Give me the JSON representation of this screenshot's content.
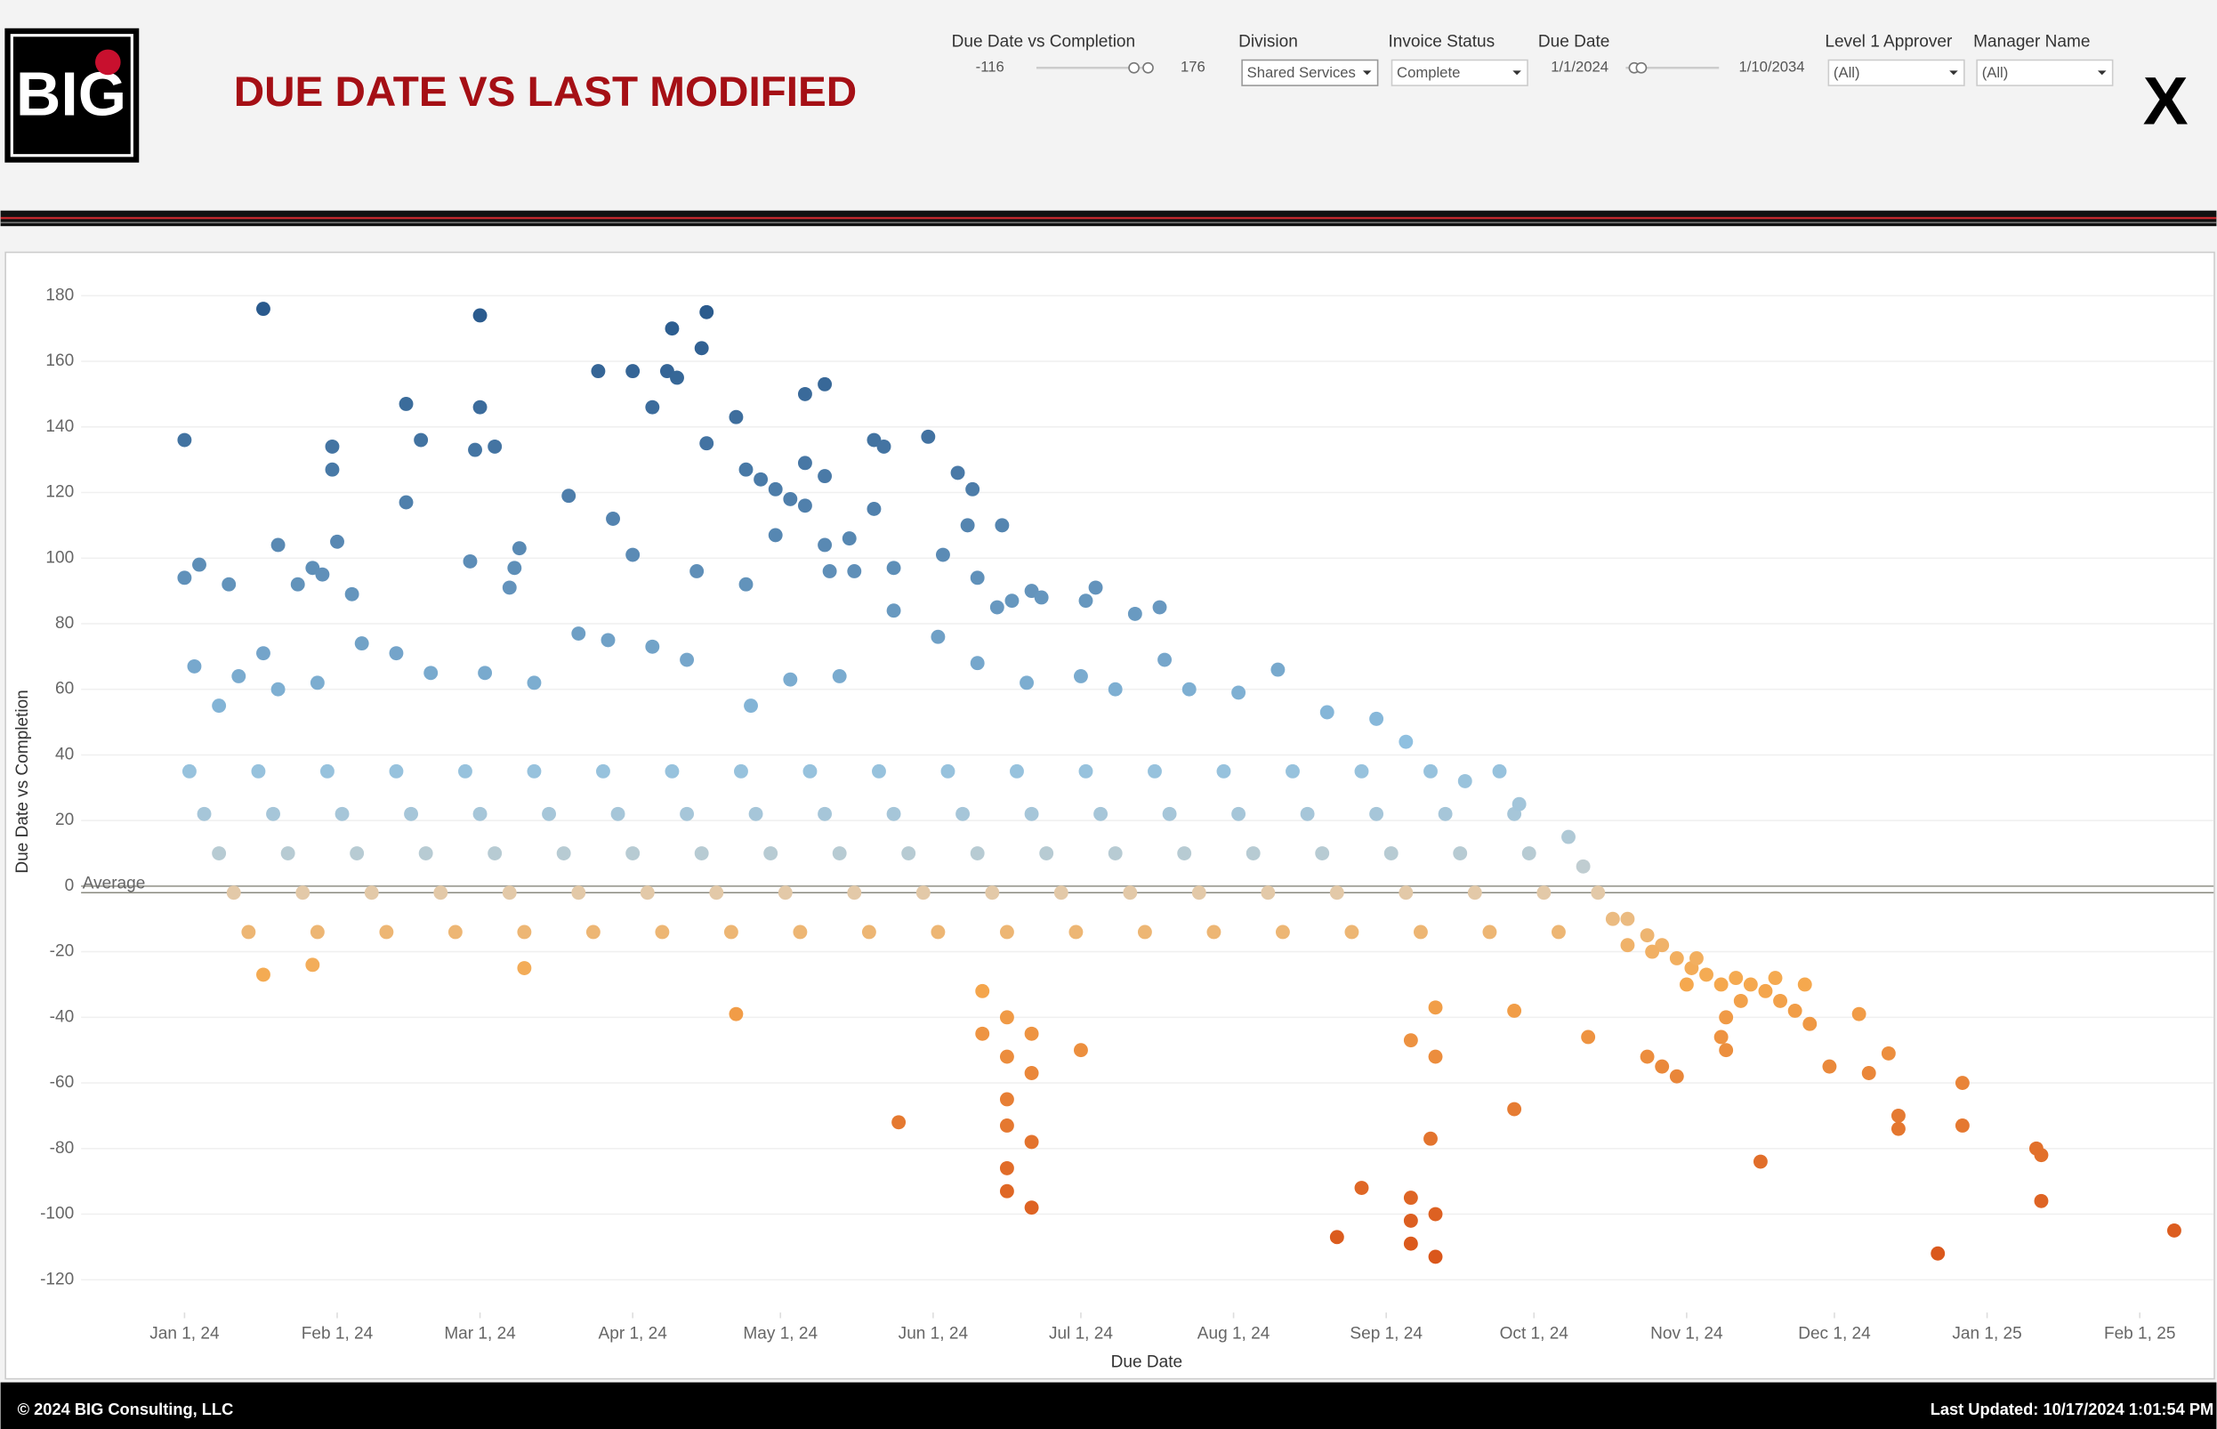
{
  "header": {
    "logo": "BIG",
    "title": "DUE DATE VS LAST MODIFIED",
    "close": "X"
  },
  "filters": [
    {
      "label": "Due Date vs Completion",
      "min": -116,
      "max": 176
    },
    {
      "label": "Division",
      "value": "Shared Services"
    },
    {
      "label": "Invoice Status",
      "value": "Complete"
    },
    {
      "label": "Due Date",
      "start": "1/1/2024",
      "end": "1/10/2034"
    },
    {
      "label": "Level 1 Approver",
      "value": "(All)"
    },
    {
      "label": "Manager Name",
      "value": "(All)"
    }
  ],
  "chart_data": {
    "type": "scatter",
    "x_label": "Due Date",
    "y_label": "Due Date vs Completion",
    "xlim": [
      "2023-12-11",
      "2025-02-16"
    ],
    "xticks": [
      {
        "value": "2024-01-01",
        "label": "Jan 1, 24"
      },
      {
        "value": "2024-02-01",
        "label": "Feb 1, 24"
      },
      {
        "value": "2024-03-01",
        "label": "Mar 1, 24"
      },
      {
        "value": "2024-04-01",
        "label": "Apr 1, 24"
      },
      {
        "value": "2024-05-01",
        "label": "May 1, 24"
      },
      {
        "value": "2024-06-01",
        "label": "Jun 1, 24"
      },
      {
        "value": "2024-07-01",
        "label": "Jul 1, 24"
      },
      {
        "value": "2024-08-01",
        "label": "Aug 1, 24"
      },
      {
        "value": "2024-09-01",
        "label": "Sep 1, 24"
      },
      {
        "value": "2024-10-01",
        "label": "Oct 1, 24"
      },
      {
        "value": "2024-11-01",
        "label": "Nov 1, 24"
      },
      {
        "value": "2024-12-01",
        "label": "Dec 1, 24"
      },
      {
        "value": "2025-01-01",
        "label": "Jan 1, 25"
      },
      {
        "value": "2025-02-01",
        "label": "Feb 1, 25"
      }
    ],
    "ylim": [
      -130,
      190
    ],
    "yticks": [
      -120,
      -100,
      -80,
      -60,
      -40,
      -20,
      0,
      20,
      40,
      60,
      80,
      100,
      120,
      140,
      160,
      180
    ],
    "grid": true,
    "reference_line": {
      "label": "Average",
      "value": -2
    },
    "color_scale": [
      "#d9551a",
      "#f5a94f",
      "#dcd5c8",
      "#8fc0e0",
      "#2a5a8d"
    ],
    "x": [
      "2024-01-01",
      "2024-01-01",
      "2024-01-04",
      "2024-01-10",
      "2024-01-17",
      "2024-01-17",
      "2024-01-20",
      "2024-01-24",
      "2024-01-27",
      "2024-01-29",
      "2024-01-31",
      "2024-01-31",
      "2024-02-01",
      "2024-02-04",
      "2024-02-15",
      "2024-02-15",
      "2024-02-18",
      "2024-02-28",
      "2024-03-01",
      "2024-03-01",
      "2024-02-29",
      "2024-03-04",
      "2024-03-08",
      "2024-03-09",
      "2024-03-07",
      "2024-03-19",
      "2024-03-25",
      "2024-03-28",
      "2024-04-01",
      "2024-04-01",
      "2024-04-05",
      "2024-04-08",
      "2024-04-09",
      "2024-04-10",
      "2024-04-14",
      "2024-04-15",
      "2024-04-16",
      "2024-04-16",
      "2024-04-22",
      "2024-04-24",
      "2024-04-27",
      "2024-04-24",
      "2024-04-30",
      "2024-05-03",
      "2024-05-06",
      "2024-05-06",
      "2024-05-10",
      "2024-05-10",
      "2024-05-06",
      "2024-04-30",
      "2024-05-10",
      "2024-05-11",
      "2024-05-15",
      "2024-05-16",
      "2024-05-20",
      "2024-05-22",
      "2024-05-20",
      "2024-05-24",
      "2024-05-31",
      "2024-06-06",
      "2024-06-09",
      "2024-06-03",
      "2024-06-08",
      "2024-06-15",
      "2024-06-10",
      "2024-06-17",
      "2024-06-21",
      "2024-06-23",
      "2024-07-02",
      "2024-07-04",
      "2024-07-12",
      "2024-07-17",
      "2024-06-14",
      "2024-01-17",
      "2024-01-27",
      "2024-03-10",
      "2024-04-22",
      "2024-05-25",
      "2024-06-11",
      "2024-06-16",
      "2024-06-16",
      "2024-06-16",
      "2024-06-16",
      "2024-06-16",
      "2024-06-21",
      "2024-06-21",
      "2024-06-21",
      "2024-06-21",
      "2024-07-01",
      "2024-06-16",
      "2024-06-11",
      "2024-08-22",
      "2024-08-27",
      "2024-09-06",
      "2024-09-06",
      "2024-09-06",
      "2024-09-11",
      "2024-09-11",
      "2024-09-10",
      "2024-09-11",
      "2024-09-06",
      "2024-09-11",
      "2024-09-27",
      "2024-09-27",
      "2024-10-12",
      "2024-10-24",
      "2024-10-27",
      "2024-10-30",
      "2024-11-16",
      "2024-11-30",
      "2024-12-08",
      "2024-12-14",
      "2024-12-14",
      "2024-12-22",
      "2024-12-27",
      "2024-12-27",
      "2025-01-11",
      "2025-01-12",
      "2025-01-12",
      "2025-02-08",
      "2024-12-06",
      "2024-12-12",
      "2024-11-09",
      "2024-11-08",
      "2024-01-02",
      "2024-01-05",
      "2024-01-08",
      "2024-01-11",
      "2024-01-14",
      "2024-01-16",
      "2024-01-19",
      "2024-01-22",
      "2024-01-25",
      "2024-01-28",
      "2024-01-30",
      "2024-02-02",
      "2024-02-05",
      "2024-02-08",
      "2024-02-11",
      "2024-02-13",
      "2024-02-16",
      "2024-02-19",
      "2024-02-22",
      "2024-02-25",
      "2024-02-27",
      "2024-03-01",
      "2024-03-04",
      "2024-03-07",
      "2024-03-10",
      "2024-03-12",
      "2024-03-15",
      "2024-03-18",
      "2024-03-21",
      "2024-03-24",
      "2024-03-26",
      "2024-03-29",
      "2024-04-01",
      "2024-04-04",
      "2024-04-07",
      "2024-04-09",
      "2024-04-12",
      "2024-04-15",
      "2024-04-18",
      "2024-04-21",
      "2024-04-23",
      "2024-04-26",
      "2024-04-29",
      "2024-05-02",
      "2024-05-05",
      "2024-05-07",
      "2024-05-10",
      "2024-05-13",
      "2024-05-16",
      "2024-05-19",
      "2024-05-21",
      "2024-05-24",
      "2024-05-27",
      "2024-05-30",
      "2024-06-02",
      "2024-06-04",
      "2024-06-07",
      "2024-06-10",
      "2024-06-13",
      "2024-06-16",
      "2024-06-18",
      "2024-06-21",
      "2024-06-24",
      "2024-06-27",
      "2024-06-30",
      "2024-07-02",
      "2024-07-05",
      "2024-07-08",
      "2024-07-11",
      "2024-07-14",
      "2024-07-16",
      "2024-07-19",
      "2024-07-22",
      "2024-07-25",
      "2024-07-28",
      "2024-07-30",
      "2024-08-02",
      "2024-08-05",
      "2024-08-08",
      "2024-08-11",
      "2024-08-13",
      "2024-08-16",
      "2024-08-19",
      "2024-08-22",
      "2024-08-25",
      "2024-08-27",
      "2024-08-30",
      "2024-09-02",
      "2024-09-05",
      "2024-09-08",
      "2024-09-10",
      "2024-09-13",
      "2024-09-16",
      "2024-09-19",
      "2024-09-22",
      "2024-09-24",
      "2024-09-27",
      "2024-09-30",
      "2024-10-03",
      "2024-10-06",
      "2024-10-08",
      "2024-10-11",
      "2024-10-14",
      "2024-10-17",
      "2024-10-20",
      "2024-01-03",
      "2024-01-08",
      "2024-01-12",
      "2024-01-20",
      "2024-01-28",
      "2024-02-06",
      "2024-02-13",
      "2024-02-20",
      "2024-03-02",
      "2024-03-12",
      "2024-03-21",
      "2024-03-27",
      "2024-04-05",
      "2024-04-12",
      "2024-04-25",
      "2024-05-03",
      "2024-05-13",
      "2024-05-24",
      "2024-06-02",
      "2024-06-10",
      "2024-06-20",
      "2024-07-01",
      "2024-07-08",
      "2024-07-18",
      "2024-07-23",
      "2024-08-02",
      "2024-08-10",
      "2024-08-20",
      "2024-08-30",
      "2024-09-05",
      "2024-09-17",
      "2024-09-28",
      "2024-10-20",
      "2024-10-24",
      "2024-10-27",
      "2024-10-30",
      "2024-11-02",
      "2024-11-05",
      "2024-11-08",
      "2024-11-11",
      "2024-11-14",
      "2024-11-17",
      "2024-11-20",
      "2024-11-23",
      "2024-11-26",
      "2024-10-25",
      "2024-11-01",
      "2024-11-03",
      "2024-11-09",
      "2024-11-12",
      "2024-11-19",
      "2024-11-25"
    ],
    "values": [
      136,
      94,
      98,
      92,
      176,
      71,
      104,
      92,
      97,
      95,
      134,
      127,
      105,
      89,
      147,
      117,
      136,
      99,
      174,
      146,
      133,
      134,
      97,
      103,
      91,
      119,
      157,
      112,
      101,
      157,
      146,
      157,
      170,
      155,
      96,
      164,
      175,
      135,
      143,
      127,
      124,
      92,
      121,
      118,
      129,
      150,
      153,
      125,
      116,
      107,
      104,
      96,
      106,
      96,
      136,
      134,
      115,
      97,
      137,
      126,
      121,
      101,
      110,
      110,
      94,
      87,
      90,
      88,
      87,
      91,
      83,
      85,
      85,
      -27,
      -24,
      -25,
      -39,
      -72,
      -45,
      -52,
      -65,
      -73,
      -86,
      -93,
      -78,
      -98,
      -57,
      -45,
      -50,
      -40,
      -32,
      -107,
      -92,
      -95,
      -102,
      -109,
      -100,
      -113,
      -77,
      -52,
      -47,
      -37,
      -38,
      -68,
      -46,
      -52,
      -55,
      -58,
      -84,
      -55,
      -57,
      -70,
      -74,
      -112,
      -60,
      -73,
      -80,
      -96,
      -82,
      -105,
      -39,
      -51,
      -50,
      -46,
      35,
      22,
      10,
      -2,
      -14,
      35,
      22,
      10,
      -2,
      -14,
      35,
      22,
      10,
      -2,
      -14,
      35,
      22,
      10,
      -2,
      -14,
      35,
      22,
      10,
      -2,
      -14,
      35,
      22,
      10,
      -2,
      -14,
      35,
      22,
      10,
      -2,
      -14,
      35,
      22,
      10,
      -2,
      -14,
      35,
      22,
      10,
      -2,
      -14,
      35,
      22,
      10,
      -2,
      -14,
      35,
      22,
      10,
      -2,
      -14,
      35,
      22,
      10,
      -2,
      -14,
      35,
      22,
      10,
      -2,
      -14,
      35,
      22,
      10,
      -2,
      -14,
      35,
      22,
      10,
      -2,
      -14,
      35,
      22,
      10,
      -2,
      -14,
      35,
      22,
      10,
      -2,
      -14,
      35,
      22,
      10,
      -2,
      -14,
      35,
      22,
      10,
      -2,
      -14,
      35,
      22,
      10,
      -2,
      -14,
      15,
      6,
      -2,
      -10,
      -18,
      67,
      55,
      64,
      60,
      62,
      74,
      71,
      65,
      65,
      62,
      77,
      75,
      73,
      69,
      55,
      63,
      64,
      84,
      76,
      68,
      62,
      64,
      60,
      69,
      60,
      59,
      66,
      53,
      51,
      44,
      32,
      25,
      -10,
      -15,
      -18,
      -22,
      -25,
      -27,
      -30,
      -28,
      -30,
      -32,
      -35,
      -38,
      -42,
      -20,
      -30,
      -22,
      -40,
      -35,
      -28,
      -30
    ]
  },
  "footer": {
    "copyright": "© 2024 BIG Consulting, LLC",
    "updated": "Last Updated: 10/17/2024 1:01:54 PM"
  }
}
